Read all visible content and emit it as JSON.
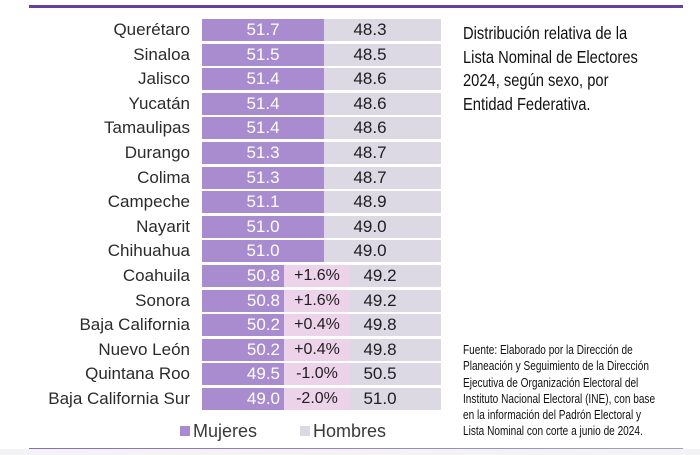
{
  "chart_data": {
    "type": "bar",
    "orientation": "horizontal",
    "stacked": true,
    "title": "Distribución relativa de la Lista Nominal de Electores 2024, según sexo, por Entidad Federativa.",
    "title_lines": [
      "Distribución relativa de la",
      "Lista Nominal de Electores",
      "2024, según sexo, por",
      "Entidad Federativa."
    ],
    "categories": [
      "Querétaro",
      "Sinaloa",
      "Jalisco",
      "Yucatán",
      "Tamaulipas",
      "Durango",
      "Colima",
      "Campeche",
      "Nayarit",
      "Chihuahua",
      "Coahuila",
      "Sonora",
      "Baja California",
      "Nuevo León",
      "Quintana Roo",
      "Baja California Sur"
    ],
    "series": [
      {
        "name": "Mujeres",
        "color": "#a98bcf",
        "values": [
          51.7,
          51.5,
          51.4,
          51.4,
          51.4,
          51.3,
          51.3,
          51.1,
          51.0,
          51.0,
          50.8,
          50.8,
          50.2,
          50.2,
          49.5,
          49.0
        ]
      },
      {
        "name": "Hombres",
        "color": "#dcd8e4",
        "values": [
          48.3,
          48.5,
          48.6,
          48.6,
          48.6,
          48.7,
          48.7,
          48.9,
          49.0,
          49.0,
          49.2,
          49.2,
          49.8,
          49.8,
          50.5,
          51.0
        ]
      }
    ],
    "annotations": [
      {
        "category": "Coahuila",
        "text": "+1.6%"
      },
      {
        "category": "Sonora",
        "text": "+1.6%"
      },
      {
        "category": "Baja California",
        "text": "+0.4%"
      },
      {
        "category": "Nuevo León",
        "text": "+0.4%"
      },
      {
        "category": "Quintana Roo",
        "text": "-1.0%"
      },
      {
        "category": "Baja California Sur",
        "text": "-2.0%"
      }
    ],
    "annotation_color": "#ecd3ea",
    "legend": [
      "Mujeres",
      "Hombres"
    ],
    "legend_position": "bottom",
    "xlabel": "",
    "ylabel": "",
    "grid": false
  },
  "source_lines": [
    "Fuente: Elaborado por la Dirección de",
    "Planeación y Seguimiento de la Dirección",
    "Ejecutiva de Organización Electoral del",
    "Instituto Nacional Electoral (INE), con base",
    "en la información del Padrón Electoral y",
    "Lista Nominal con corte a junio de 2024."
  ],
  "colors": {
    "accent_rule": "#6b3fa0"
  }
}
